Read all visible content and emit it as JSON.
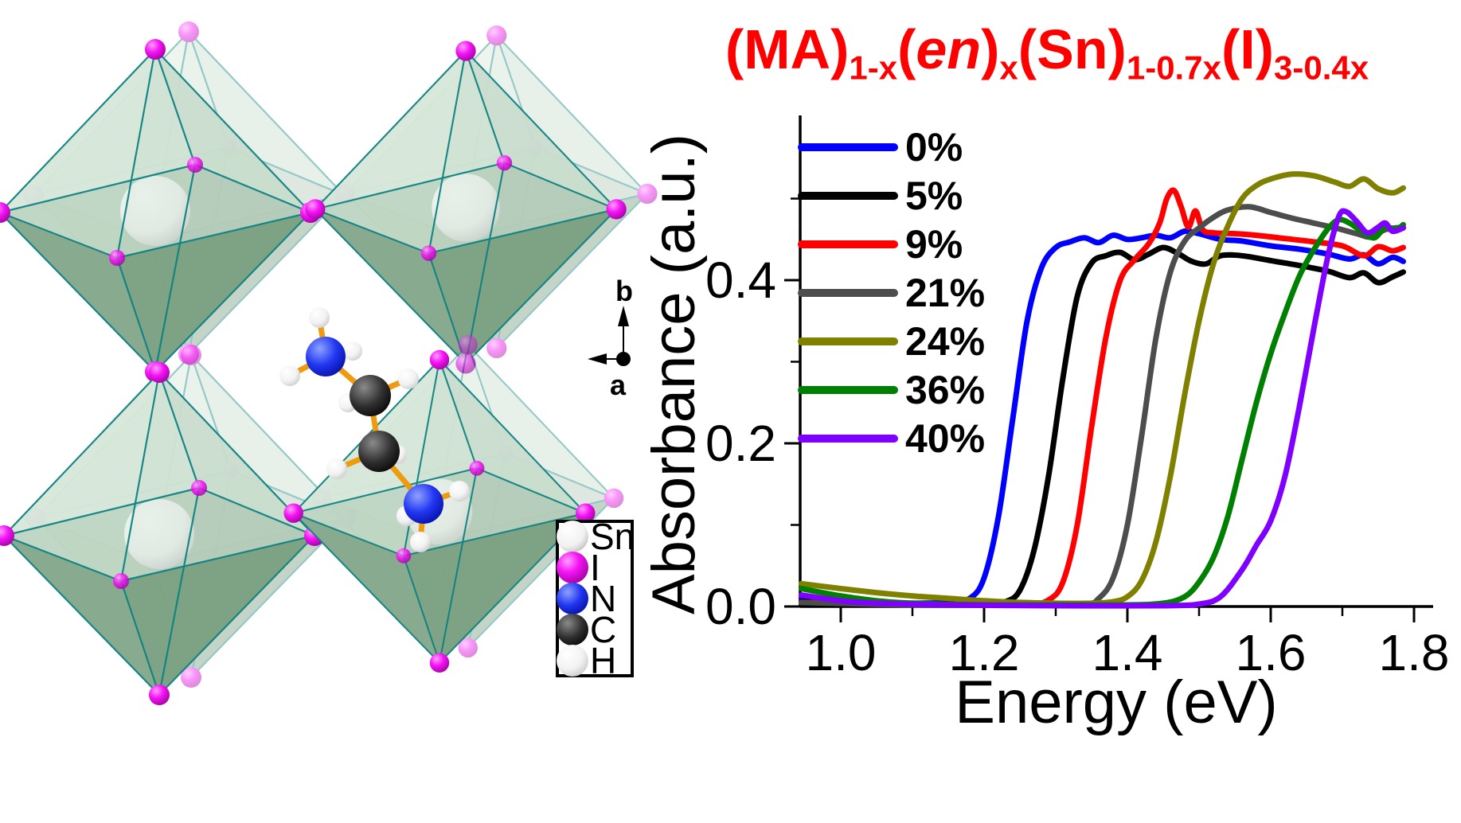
{
  "figure": {
    "title": {
      "color": "#ff0000",
      "plain": "(MA)1-x(en)x(Sn)1-0.7x(I)3-0.4x",
      "segments": [
        {
          "text": "(MA)",
          "sub": "1-x"
        },
        {
          "text": "("
        },
        {
          "text": "en",
          "italic": true
        },
        {
          "text": ")",
          "sub": "x"
        },
        {
          "text": "(Sn)",
          "sub": "1-0.7x"
        },
        {
          "text": "(I)",
          "sub": "3-0.4x"
        }
      ]
    },
    "axis_indicator": {
      "up_label": "b",
      "left_label": "a"
    },
    "atom_legend": [
      {
        "symbol": "Sn",
        "color": "#d9d9d9"
      },
      {
        "symbol": "I",
        "color": "#ee00ee"
      },
      {
        "symbol": "N",
        "color": "#1414e6"
      },
      {
        "symbol": "C",
        "color": "#1a1a1a"
      },
      {
        "symbol": "H",
        "color": "#f8f8f8"
      }
    ]
  },
  "chart_data": {
    "type": "line",
    "title": "",
    "xlabel": "Energy (eV)",
    "ylabel": "Absorbance (a.u.)",
    "xlim": [
      0.94,
      1.83
    ],
    "ylim": [
      0,
      0.6
    ],
    "grid": false,
    "legend_position": "upper-left-inside",
    "x_ticks": [
      {
        "value": 1.0,
        "label": "1.0"
      },
      {
        "value": 1.2,
        "label": "1.2"
      },
      {
        "value": 1.4,
        "label": "1.4"
      },
      {
        "value": 1.6,
        "label": "1.6"
      },
      {
        "value": 1.8,
        "label": "1.8"
      }
    ],
    "x_minor_ticks": [
      1.1,
      1.3,
      1.5,
      1.7
    ],
    "y_ticks": [
      {
        "value": 0.0,
        "label": "0.0"
      },
      {
        "value": 0.2,
        "label": "0.2"
      },
      {
        "value": 0.4,
        "label": "0.4"
      }
    ],
    "y_minor_ticks": [
      0.1,
      0.3,
      0.5
    ],
    "series": [
      {
        "name": "0%",
        "color": "#0000ff",
        "points": [
          [
            0.945,
            0.01
          ],
          [
            1.0,
            0.007
          ],
          [
            1.05,
            0.005
          ],
          [
            1.1,
            0.004
          ],
          [
            1.15,
            0.005
          ],
          [
            1.18,
            0.01
          ],
          [
            1.2,
            0.035
          ],
          [
            1.22,
            0.11
          ],
          [
            1.24,
            0.23
          ],
          [
            1.26,
            0.35
          ],
          [
            1.28,
            0.415
          ],
          [
            1.3,
            0.44
          ],
          [
            1.32,
            0.447
          ],
          [
            1.34,
            0.452
          ],
          [
            1.36,
            0.446
          ],
          [
            1.38,
            0.455
          ],
          [
            1.4,
            0.45
          ],
          [
            1.42,
            0.452
          ],
          [
            1.44,
            0.455
          ],
          [
            1.46,
            0.452
          ],
          [
            1.48,
            0.46
          ],
          [
            1.5,
            0.457
          ],
          [
            1.53,
            0.45
          ],
          [
            1.56,
            0.448
          ],
          [
            1.6,
            0.442
          ],
          [
            1.64,
            0.438
          ],
          [
            1.68,
            0.432
          ],
          [
            1.71,
            0.426
          ],
          [
            1.73,
            0.431
          ],
          [
            1.75,
            0.42
          ],
          [
            1.77,
            0.428
          ],
          [
            1.785,
            0.423
          ]
        ]
      },
      {
        "name": "5%",
        "color": "#000000",
        "points": [
          [
            0.945,
            0.006
          ],
          [
            1.05,
            0.004
          ],
          [
            1.15,
            0.003
          ],
          [
            1.2,
            0.003
          ],
          [
            1.23,
            0.006
          ],
          [
            1.25,
            0.02
          ],
          [
            1.27,
            0.07
          ],
          [
            1.29,
            0.16
          ],
          [
            1.31,
            0.28
          ],
          [
            1.33,
            0.38
          ],
          [
            1.35,
            0.421
          ],
          [
            1.37,
            0.43
          ],
          [
            1.39,
            0.434
          ],
          [
            1.41,
            0.425
          ],
          [
            1.43,
            0.432
          ],
          [
            1.45,
            0.44
          ],
          [
            1.47,
            0.433
          ],
          [
            1.49,
            0.423
          ],
          [
            1.51,
            0.42
          ],
          [
            1.53,
            0.43
          ],
          [
            1.56,
            0.43
          ],
          [
            1.6,
            0.424
          ],
          [
            1.64,
            0.418
          ],
          [
            1.68,
            0.411
          ],
          [
            1.71,
            0.403
          ],
          [
            1.73,
            0.409
          ],
          [
            1.75,
            0.397
          ],
          [
            1.77,
            0.404
          ],
          [
            1.785,
            0.41
          ]
        ]
      },
      {
        "name": "9%",
        "color": "#ff0000",
        "points": [
          [
            0.945,
            0.005
          ],
          [
            1.1,
            0.003
          ],
          [
            1.2,
            0.002
          ],
          [
            1.26,
            0.002
          ],
          [
            1.29,
            0.008
          ],
          [
            1.31,
            0.03
          ],
          [
            1.33,
            0.1
          ],
          [
            1.35,
            0.22
          ],
          [
            1.37,
            0.33
          ],
          [
            1.39,
            0.4
          ],
          [
            1.41,
            0.425
          ],
          [
            1.43,
            0.445
          ],
          [
            1.445,
            0.47
          ],
          [
            1.455,
            0.5
          ],
          [
            1.465,
            0.51
          ],
          [
            1.475,
            0.49
          ],
          [
            1.485,
            0.465
          ],
          [
            1.495,
            0.485
          ],
          [
            1.505,
            0.462
          ],
          [
            1.52,
            0.458
          ],
          [
            1.55,
            0.457
          ],
          [
            1.58,
            0.455
          ],
          [
            1.62,
            0.451
          ],
          [
            1.66,
            0.447
          ],
          [
            1.7,
            0.442
          ],
          [
            1.73,
            0.43
          ],
          [
            1.75,
            0.441
          ],
          [
            1.77,
            0.436
          ],
          [
            1.785,
            0.44
          ]
        ]
      },
      {
        "name": "21%",
        "color": "#4d4d4d",
        "points": [
          [
            0.945,
            0.005
          ],
          [
            1.1,
            0.002
          ],
          [
            1.25,
            0.002
          ],
          [
            1.34,
            0.003
          ],
          [
            1.36,
            0.01
          ],
          [
            1.38,
            0.035
          ],
          [
            1.4,
            0.1
          ],
          [
            1.42,
            0.21
          ],
          [
            1.44,
            0.33
          ],
          [
            1.46,
            0.41
          ],
          [
            1.48,
            0.448
          ],
          [
            1.5,
            0.464
          ],
          [
            1.52,
            0.477
          ],
          [
            1.54,
            0.486
          ],
          [
            1.57,
            0.49
          ],
          [
            1.6,
            0.483
          ],
          [
            1.63,
            0.476
          ],
          [
            1.66,
            0.47
          ],
          [
            1.69,
            0.464
          ],
          [
            1.72,
            0.457
          ],
          [
            1.74,
            0.453
          ],
          [
            1.76,
            0.462
          ],
          [
            1.785,
            0.465
          ]
        ]
      },
      {
        "name": "24%",
        "color": "#808000",
        "points": [
          [
            0.945,
            0.028
          ],
          [
            1.0,
            0.022
          ],
          [
            1.05,
            0.017
          ],
          [
            1.1,
            0.013
          ],
          [
            1.15,
            0.01
          ],
          [
            1.2,
            0.007
          ],
          [
            1.25,
            0.005
          ],
          [
            1.3,
            0.004
          ],
          [
            1.35,
            0.004
          ],
          [
            1.38,
            0.006
          ],
          [
            1.4,
            0.012
          ],
          [
            1.42,
            0.032
          ],
          [
            1.44,
            0.08
          ],
          [
            1.46,
            0.16
          ],
          [
            1.48,
            0.26
          ],
          [
            1.5,
            0.35
          ],
          [
            1.52,
            0.42
          ],
          [
            1.54,
            0.466
          ],
          [
            1.56,
            0.5
          ],
          [
            1.58,
            0.516
          ],
          [
            1.6,
            0.524
          ],
          [
            1.63,
            0.53
          ],
          [
            1.66,
            0.528
          ],
          [
            1.69,
            0.52
          ],
          [
            1.71,
            0.515
          ],
          [
            1.73,
            0.524
          ],
          [
            1.75,
            0.512
          ],
          [
            1.77,
            0.507
          ],
          [
            1.785,
            0.513
          ]
        ]
      },
      {
        "name": "36%",
        "color": "#008000",
        "points": [
          [
            0.945,
            0.022
          ],
          [
            1.0,
            0.013
          ],
          [
            1.05,
            0.007
          ],
          [
            1.1,
            0.004
          ],
          [
            1.2,
            0.002
          ],
          [
            1.3,
            0.002
          ],
          [
            1.4,
            0.002
          ],
          [
            1.45,
            0.004
          ],
          [
            1.48,
            0.012
          ],
          [
            1.5,
            0.03
          ],
          [
            1.52,
            0.06
          ],
          [
            1.54,
            0.11
          ],
          [
            1.56,
            0.18
          ],
          [
            1.58,
            0.25
          ],
          [
            1.6,
            0.31
          ],
          [
            1.62,
            0.36
          ],
          [
            1.64,
            0.405
          ],
          [
            1.66,
            0.437
          ],
          [
            1.68,
            0.463
          ],
          [
            1.695,
            0.474
          ],
          [
            1.71,
            0.47
          ],
          [
            1.73,
            0.458
          ],
          [
            1.745,
            0.452
          ],
          [
            1.76,
            0.465
          ],
          [
            1.775,
            0.462
          ],
          [
            1.785,
            0.468
          ]
        ]
      },
      {
        "name": "40%",
        "color": "#8000ff",
        "points": [
          [
            0.945,
            0.014
          ],
          [
            1.0,
            0.007
          ],
          [
            1.05,
            0.004
          ],
          [
            1.15,
            0.002
          ],
          [
            1.3,
            0.001
          ],
          [
            1.45,
            0.001
          ],
          [
            1.5,
            0.003
          ],
          [
            1.53,
            0.012
          ],
          [
            1.56,
            0.045
          ],
          [
            1.58,
            0.075
          ],
          [
            1.6,
            0.105
          ],
          [
            1.62,
            0.16
          ],
          [
            1.64,
            0.245
          ],
          [
            1.66,
            0.34
          ],
          [
            1.68,
            0.43
          ],
          [
            1.695,
            0.478
          ],
          [
            1.705,
            0.484
          ],
          [
            1.72,
            0.472
          ],
          [
            1.735,
            0.458
          ],
          [
            1.75,
            0.465
          ],
          [
            1.76,
            0.47
          ],
          [
            1.77,
            0.46
          ],
          [
            1.785,
            0.464
          ]
        ]
      }
    ]
  }
}
